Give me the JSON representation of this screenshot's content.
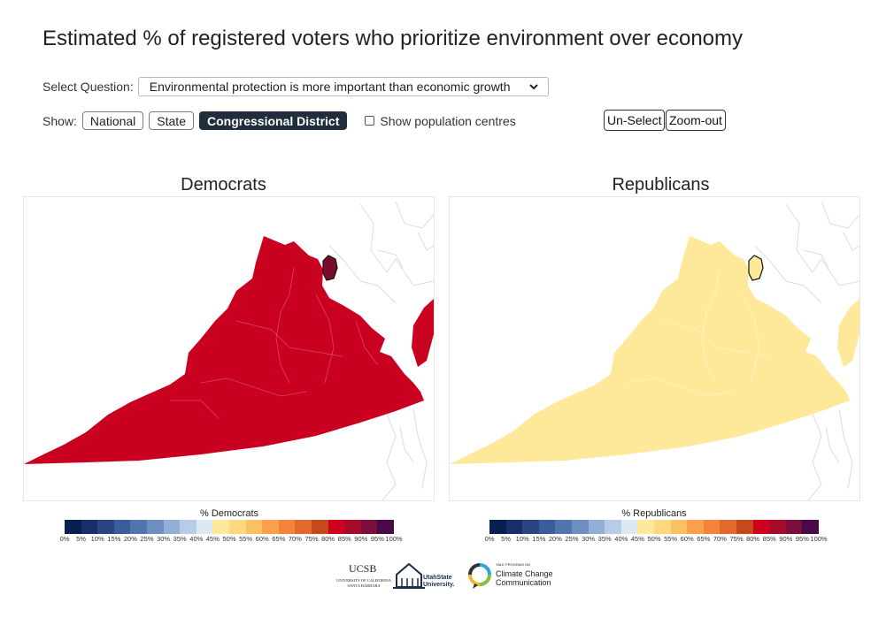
{
  "title": "Estimated % of registered voters who prioritize environment over economy",
  "question": {
    "label": "Select Question:",
    "selected": "Environmental protection is more important than economic growth"
  },
  "show": {
    "label": "Show:",
    "buttons": [
      "National",
      "State",
      "Congressional District"
    ],
    "active": "Congressional District",
    "checkbox_label": "Show population centres",
    "checkbox_checked": false
  },
  "tools": {
    "unselect": "Un-Select",
    "zoomout": "Zoom-out"
  },
  "panels": [
    {
      "title": "Democrats",
      "legend_title": "% Democrats",
      "fill": "#ca0020",
      "selected_fill": "#7a0b2c"
    },
    {
      "title": "Republicans",
      "legend_title": "% Republicans",
      "fill": "#fee99b",
      "selected_fill": "#fee99b"
    }
  ],
  "legend": {
    "colors": [
      "#08204f",
      "#172f6a",
      "#2a4682",
      "#3d5d9a",
      "#5175ae",
      "#6f8fc2",
      "#93afd4",
      "#b8cde5",
      "#dfe8f2",
      "#fee99b",
      "#fdd87c",
      "#fcc064",
      "#f9a04d",
      "#f3833d",
      "#e3682c",
      "#c6491e",
      "#d1001c",
      "#a60a2c",
      "#7a0f3f",
      "#4b0a47"
    ],
    "ticks": [
      "0%",
      "5%",
      "10%",
      "15%",
      "20%",
      "25%",
      "30%",
      "35%",
      "40%",
      "45%",
      "50%",
      "55%",
      "60%",
      "65%",
      "70%",
      "75%",
      "80%",
      "85%",
      "90%",
      "95%",
      "100%"
    ]
  },
  "logos": {
    "ucsb": "UCSB",
    "ucsb_sub": "UNIVERSITY OF CALIFORNIA SANTA BARBARA",
    "usu": "UtahState University.",
    "yale_small": "YALE PROGRAM ON",
    "yale_line1": "Climate Change",
    "yale_line2": "Communication"
  }
}
